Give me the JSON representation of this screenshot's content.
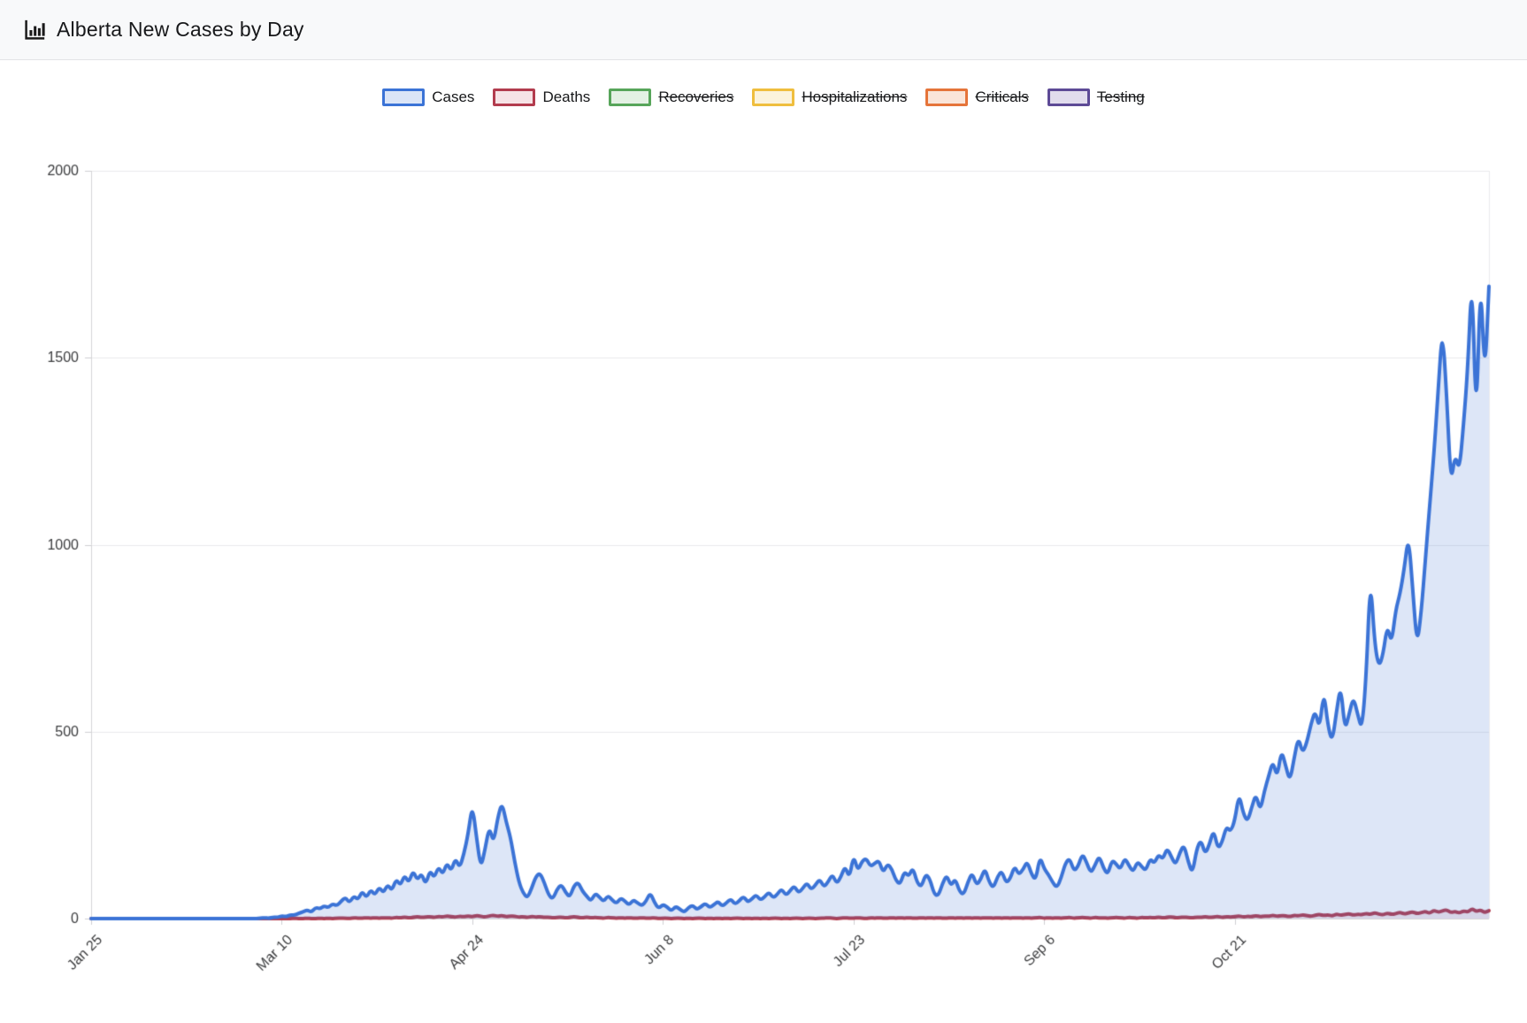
{
  "header": {
    "title": "Alberta New Cases by Day",
    "icon": "bar-chart-icon"
  },
  "legend": [
    {
      "label": "Cases",
      "border": "#3b73d6",
      "fill": "#dbe5f7",
      "struck": false
    },
    {
      "label": "Deaths",
      "border": "#b23c4e",
      "fill": "#f6e3e6",
      "struck": false
    },
    {
      "label": "Recoveries",
      "border": "#57a55a",
      "fill": "#e4f1e4",
      "struck": true
    },
    {
      "label": "Hospitalizations",
      "border": "#efbe3e",
      "fill": "#fbf3dc",
      "struck": true
    },
    {
      "label": "Criticals",
      "border": "#e5743a",
      "fill": "#fae5d9",
      "struck": true
    },
    {
      "label": "Testing",
      "border": "#5d4a96",
      "fill": "#e1dced",
      "struck": true
    }
  ],
  "chart_data": {
    "type": "area",
    "title": "Alberta New Cases by Day",
    "xlabel": "",
    "ylabel": "",
    "ylim": [
      0,
      2000
    ],
    "y_ticks": [
      0,
      500,
      1000,
      1500,
      2000
    ],
    "x_tick_labels": [
      "Jan 25",
      "Mar 10",
      "Apr 24",
      "Jun 8",
      "Jul 23",
      "Sep 6",
      "Oct 21"
    ],
    "x_tick_day_indices": [
      0,
      45,
      90,
      135,
      180,
      225,
      270
    ],
    "start_label": "Jan 25",
    "grid": "horizontal",
    "legend_position": "top",
    "series": [
      {
        "name": "Cases",
        "color": "#3b73d6",
        "fill": "rgba(66,119,212,0.18)",
        "values": [
          0,
          0,
          0,
          0,
          0,
          0,
          0,
          0,
          0,
          0,
          0,
          0,
          0,
          0,
          0,
          0,
          0,
          0,
          0,
          0,
          0,
          0,
          0,
          0,
          0,
          0,
          0,
          0,
          0,
          0,
          0,
          0,
          0,
          0,
          0,
          0,
          0,
          0,
          0,
          0,
          1,
          2,
          1,
          4,
          3,
          7,
          5,
          10,
          9,
          14,
          18,
          23,
          17,
          30,
          26,
          34,
          29,
          40,
          34,
          46,
          57,
          42,
          61,
          50,
          74,
          55,
          78,
          62,
          85,
          68,
          92,
          74,
          106,
          88,
          117,
          95,
          129,
          102,
          122,
          90,
          130,
          108,
          140,
          117,
          150,
          126,
          162,
          135,
          173,
          226,
          306,
          216,
          134,
          186,
          247,
          201,
          270,
          311,
          258,
          218,
          152,
          97,
          68,
          55,
          81,
          113,
          122,
          96,
          63,
          52,
          78,
          92,
          70,
          57,
          88,
          97,
          73,
          60,
          46,
          68,
          58,
          45,
          62,
          50,
          40,
          55,
          47,
          36,
          50,
          42,
          34,
          46,
          70,
          42,
          27,
          38,
          31,
          20,
          33,
          25,
          17,
          29,
          36,
          24,
          32,
          41,
          29,
          37,
          46,
          33,
          42,
          53,
          38,
          47,
          60,
          44,
          52,
          64,
          49,
          58,
          71,
          55,
          65,
          80,
          62,
          74,
          88,
          68,
          81,
          96,
          77,
          90,
          106,
          84,
          98,
          119,
          93,
          111,
          141,
          108,
          170,
          127,
          154,
          161,
          139,
          148,
          156,
          122,
          147,
          133,
          102,
          91,
          127,
          112,
          137,
          96,
          84,
          119,
          107,
          66,
          60,
          94,
          117,
          86,
          108,
          72,
          64,
          98,
          123,
          89,
          104,
          135,
          98,
          81,
          113,
          128,
          95,
          107,
          141,
          117,
          131,
          154,
          119,
          102,
          167,
          133,
          118,
          97,
          82,
          109,
          148,
          162,
          127,
          139,
          174,
          151,
          121,
          143,
          168,
          135,
          117,
          157,
          146,
          131,
          163,
          142,
          124,
          153,
          139,
          128,
          161,
          147,
          172,
          158,
          189,
          166,
          143,
          176,
          198,
          152,
          120,
          186,
          211,
          172,
          198,
          238,
          186,
          204,
          247,
          232,
          262,
          335,
          281,
          259,
          298,
          334,
          287,
          342,
          381,
          422,
          376,
          451,
          409,
          367,
          428,
          486,
          442,
          471,
          521,
          557,
          506,
          611,
          514,
          472,
          553,
          626,
          502,
          548,
          593,
          547,
          504,
          643,
          919,
          737,
          672,
          706,
          786,
          734,
          827,
          868,
          936,
          1026,
          884,
          729,
          817,
          961,
          1105,
          1241,
          1409,
          1584,
          1402,
          1160,
          1243,
          1196,
          1321,
          1473,
          1730,
          1306,
          1733,
          1437,
          1691
        ]
      },
      {
        "name": "Deaths",
        "color": "#b23c4e",
        "fill": "rgba(178,60,78,0.10)",
        "values": [
          0,
          0,
          0,
          0,
          0,
          0,
          0,
          0,
          0,
          0,
          0,
          0,
          0,
          0,
          0,
          0,
          0,
          0,
          0,
          0,
          0,
          0,
          0,
          0,
          0,
          0,
          0,
          0,
          0,
          0,
          0,
          0,
          0,
          0,
          0,
          0,
          0,
          0,
          0,
          0,
          0,
          0,
          0,
          0,
          0,
          0,
          0,
          0,
          1,
          0,
          0,
          1,
          0,
          0,
          1,
          0,
          1,
          0,
          1,
          1,
          1,
          0,
          2,
          1,
          1,
          2,
          1,
          2,
          1,
          2,
          2,
          1,
          3,
          2,
          4,
          2,
          3,
          5,
          3,
          4,
          5,
          3,
          6,
          4,
          7,
          5,
          4,
          6,
          5,
          7,
          5,
          8,
          6,
          4,
          7,
          9,
          6,
          8,
          5,
          7,
          6,
          4,
          5,
          3,
          6,
          4,
          5,
          3,
          4,
          2,
          3,
          4,
          2,
          3,
          5,
          3,
          2,
          4,
          2,
          3,
          2,
          1,
          3,
          2,
          1,
          2,
          1,
          2,
          1,
          1,
          2,
          1,
          1,
          2,
          0,
          1,
          1,
          0,
          1,
          1,
          0,
          1,
          0,
          1,
          1,
          0,
          1,
          0,
          1,
          0,
          1,
          0,
          1,
          1,
          0,
          1,
          0,
          1,
          0,
          1,
          0,
          1,
          1,
          0,
          1,
          0,
          1,
          1,
          0,
          1,
          1,
          0,
          1,
          1,
          2,
          1,
          0,
          1,
          2,
          1,
          1,
          2,
          1,
          0,
          2,
          1,
          2,
          1,
          1,
          2,
          1,
          2,
          1,
          2,
          1,
          1,
          2,
          1,
          2,
          1,
          2,
          1,
          1,
          2,
          1,
          2,
          1,
          2,
          1,
          2,
          1,
          2,
          2,
          1,
          2,
          1,
          2,
          1,
          2,
          2,
          1,
          2,
          1,
          2,
          3,
          1,
          2,
          1,
          2,
          1,
          2,
          3,
          1,
          2,
          3,
          2,
          1,
          3,
          2,
          2,
          1,
          2,
          3,
          2,
          1,
          3,
          2,
          1,
          3,
          2,
          3,
          2,
          4,
          2,
          3,
          5,
          2,
          3,
          4,
          3,
          2,
          4,
          3,
          5,
          3,
          4,
          6,
          3,
          5,
          4,
          5,
          7,
          4,
          6,
          5,
          8,
          5,
          7,
          6,
          9,
          6,
          8,
          7,
          5,
          9,
          7,
          10,
          8,
          6,
          9,
          11,
          8,
          10,
          7,
          12,
          9,
          11,
          13,
          9,
          12,
          10,
          14,
          11,
          16,
          12,
          10,
          15,
          11,
          13,
          17,
          12,
          15,
          18,
          13,
          16,
          19,
          14,
          22,
          17,
          20,
          24,
          16,
          19,
          15,
          21,
          17,
          27,
          19,
          23,
          16,
          21
        ]
      }
    ]
  },
  "style_colors": {
    "header_bg": "#f8f9fa",
    "header_border": "#e2e3e6",
    "grid_line": "#eaeaec",
    "axis_line": "#d4d4d7",
    "tick_stub": "#cfcfd2",
    "tick_text": "#3a3b3d",
    "title_text": "#17181a"
  }
}
